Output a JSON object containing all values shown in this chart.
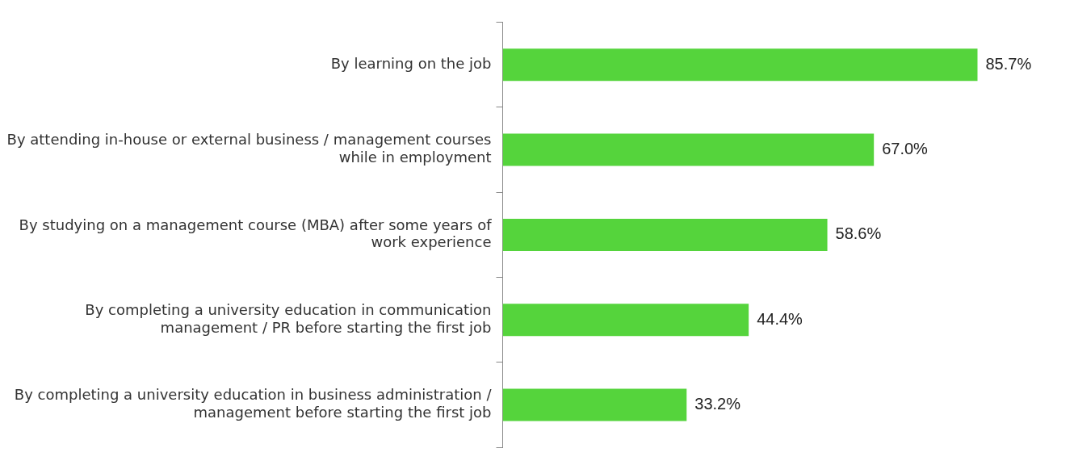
{
  "chart_data": {
    "type": "bar",
    "orientation": "horizontal",
    "categories": [
      "By learning on the job",
      "By attending in-house or external business / management courses while in employment",
      "By studying on a management course (MBA) after some years of work experience",
      "By completing a university education in communication management / PR before starting the first job",
      "By completing a university education in business administration / management before starting the first job"
    ],
    "values": [
      85.7,
      67.0,
      58.6,
      44.4,
      33.2
    ],
    "value_labels": [
      "85.7%",
      "67.0%",
      "58.6%",
      "44.4%",
      "33.2%"
    ],
    "color": "#55d43c",
    "grid": false,
    "legend": false
  }
}
